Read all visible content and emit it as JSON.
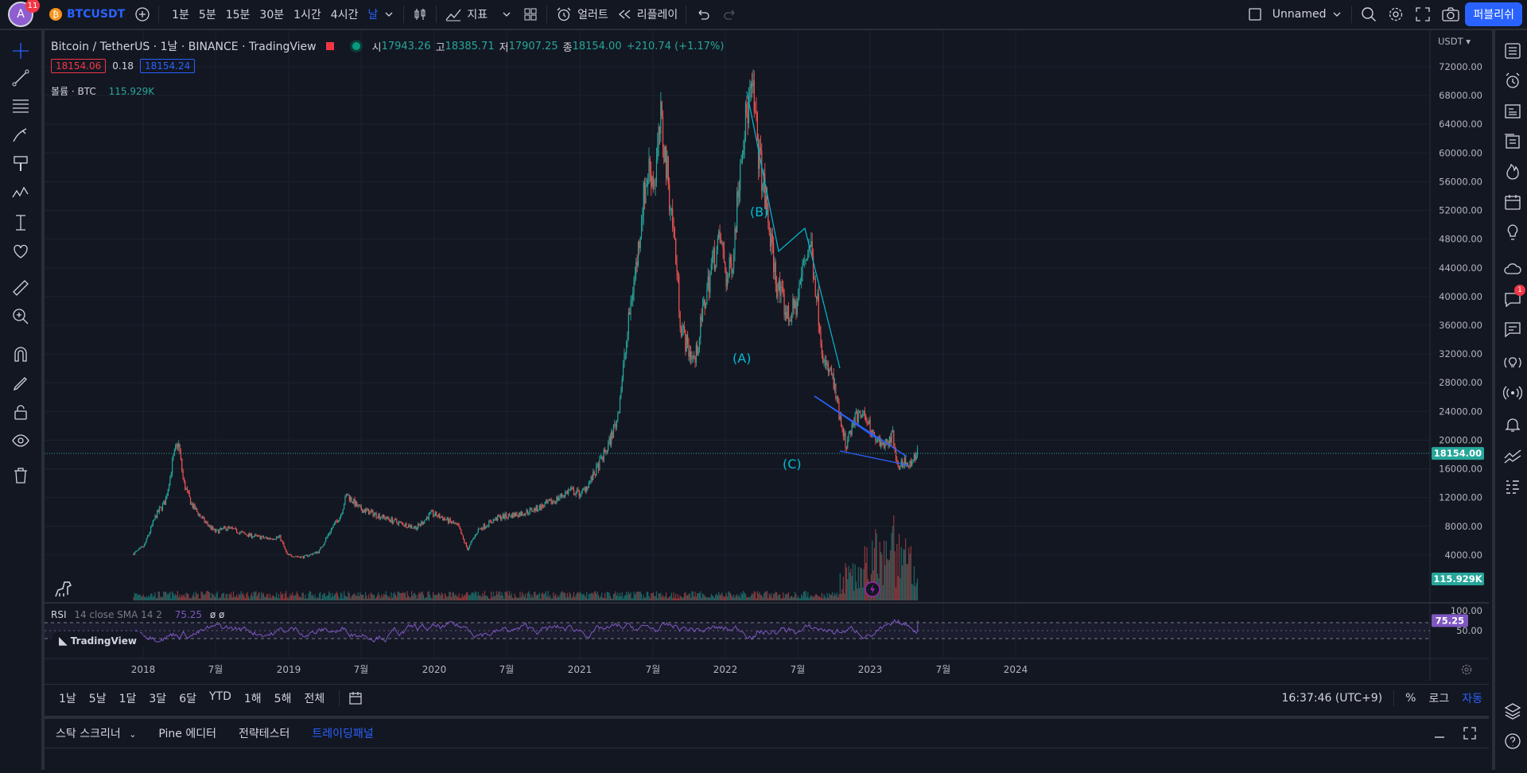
{
  "topbar": {
    "avatar_letter": "A",
    "avatar_badge": "11",
    "coin_glyph": "₿",
    "symbol": "BTCUSDT",
    "timeframes": [
      "1분",
      "5분",
      "15분",
      "30분",
      "1시간",
      "4시간",
      "날"
    ],
    "active_timeframe": "날",
    "indicators_label": "지표",
    "alert_label": "얼러트",
    "replay_label": "리플레이",
    "layout_name": "Unnamed",
    "publish_label": "퍼블리쉬"
  },
  "legend": {
    "title": "Bitcoin / TetherUS · 1날 · BINANCE · TradingView",
    "open_label": "시",
    "open": "17943.26",
    "high_label": "고",
    "high": "18385.71",
    "low_label": "저",
    "low": "17907.25",
    "close_label": "종",
    "close": "18154.00",
    "change": "+210.74 (+1.17%)",
    "bid": "18154.06",
    "spread": "0.18",
    "ask": "18154.24",
    "volume_label": "볼륨 · BTC",
    "volume_value": "115.929K",
    "rsi_label": "RSI",
    "rsi_params": "14 close SMA 14 2",
    "rsi_value": "75.25",
    "rsi_extra": "ø ø"
  },
  "price_axis": {
    "currency": "USDT",
    "ticks": [
      "72000.00",
      "68000.00",
      "64000.00",
      "60000.00",
      "56000.00",
      "52000.00",
      "48000.00",
      "44000.00",
      "40000.00",
      "36000.00",
      "32000.00",
      "28000.00",
      "24000.00",
      "20000.00",
      "16000.00",
      "12000.00",
      "8000.00",
      "4000.00"
    ],
    "current_price": "18154.00",
    "volume_tag": "115.929K",
    "rsi_ticks": [
      "100.00",
      "50.00"
    ],
    "rsi_tag": "75.25"
  },
  "time_axis": {
    "ticks": [
      "2018",
      "7월",
      "2019",
      "7월",
      "2020",
      "7월",
      "2021",
      "7월",
      "2022",
      "7월",
      "2023",
      "7월",
      "2024"
    ]
  },
  "annotations": {
    "wave_a": "(A)",
    "wave_b": "(B)",
    "wave_c": "(C)"
  },
  "watermark": "TradingView",
  "range_bar": {
    "ranges": [
      "1날",
      "5날",
      "1달",
      "3달",
      "6달",
      "YTD",
      "1해",
      "5해",
      "전체"
    ],
    "clock": "16:37:46 (UTC+9)",
    "percent": "%",
    "log": "로그",
    "auto": "자동"
  },
  "bottom_panel": {
    "tabs": [
      "스탁 스크리너",
      "Pine 에디터",
      "전략테스터",
      "트레이딩패널"
    ],
    "active_tab": "트레이딩패널"
  },
  "right_toolbar": {
    "notification_badge": "1"
  },
  "colors": {
    "background": "#131722",
    "accent": "#2962ff",
    "up": "#26a69a",
    "down": "#ef5350",
    "rsi": "#7e57c2",
    "trendline": "#2962ff",
    "wave_label": "#00bcd4"
  }
}
